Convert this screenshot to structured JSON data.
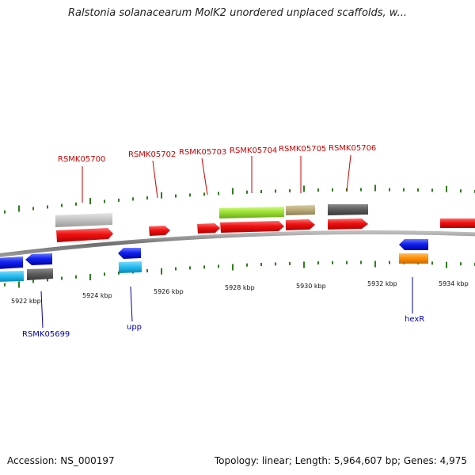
{
  "title": "Ralstonia solanacearum MolK2 unordered unplaced scaffolds, w...",
  "footer": {
    "accession": "Accession: NS_000197",
    "topology": "Topology: linear; Length: 5,964,607 bp; Genes: 4,975"
  },
  "colors": {
    "backbone": "#7a7a7a",
    "tick": "#2e7d1e",
    "label_top": "#cc0000",
    "label_bottom": "#0000aa"
  },
  "scale_labels": [
    "5922 kbp",
    "5924 kbp",
    "5926 kbp",
    "5928 kbp",
    "5930 kbp",
    "5932 kbp",
    "5934 kbp"
  ],
  "genes_labeled": [
    {
      "name": "RSMK05700",
      "strand": "top"
    },
    {
      "name": "RSMK05702",
      "strand": "top"
    },
    {
      "name": "RSMK05703",
      "strand": "top"
    },
    {
      "name": "RSMK05704",
      "strand": "top"
    },
    {
      "name": "RSMK05705",
      "strand": "top"
    },
    {
      "name": "RSMK05706",
      "strand": "top"
    },
    {
      "name": "RSMK05699",
      "strand": "bottom"
    },
    {
      "name": "upp",
      "strand": "bottom"
    },
    {
      "name": "hexR",
      "strand": "bottom"
    }
  ],
  "feature_colors": {
    "gene_forward": "#ee1111",
    "gene_reverse": "#1122ee",
    "rna_light_gray": "#c0c0c0",
    "lime": "#99dd33",
    "khaki": "#b8a878",
    "dark_gray": "#5a5a5a",
    "cyan": "#22bbee",
    "orange": "#ff8c00"
  }
}
